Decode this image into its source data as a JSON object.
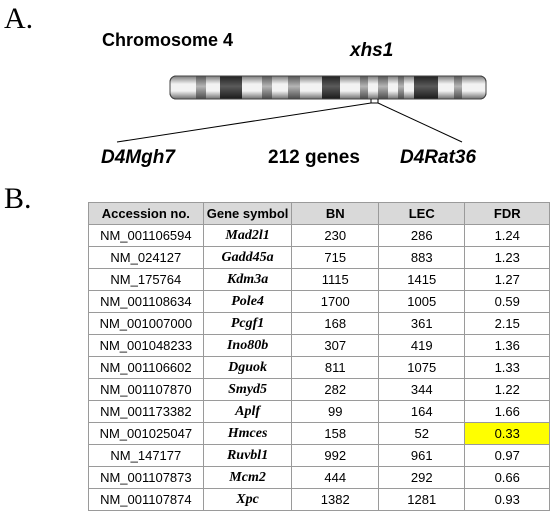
{
  "panel_a": {
    "label": "A.",
    "title": "Chromosome 4",
    "locus": "xhs1",
    "left_marker": "D4Mgh7",
    "gene_count": "212 genes",
    "right_marker": "D4Rat36"
  },
  "panel_b": {
    "label": "B.",
    "columns": [
      "Accession no.",
      "Gene symbol",
      "BN",
      "LEC",
      "FDR"
    ],
    "highlight_color": "#ffff00",
    "rows": [
      {
        "accession": "NM_001106594",
        "gene": "Mad2l1",
        "bn": "230",
        "lec": "286",
        "fdr": "1.24",
        "highlight": false
      },
      {
        "accession": "NM_024127",
        "gene": "Gadd45a",
        "bn": "715",
        "lec": "883",
        "fdr": "1.23",
        "highlight": false
      },
      {
        "accession": "NM_175764",
        "gene": "Kdm3a",
        "bn": "1115",
        "lec": "1415",
        "fdr": "1.27",
        "highlight": false
      },
      {
        "accession": "NM_001108634",
        "gene": "Pole4",
        "bn": "1700",
        "lec": "1005",
        "fdr": "0.59",
        "highlight": false
      },
      {
        "accession": "NM_001007000",
        "gene": "Pcgf1",
        "bn": "168",
        "lec": "361",
        "fdr": "2.15",
        "highlight": false
      },
      {
        "accession": "NM_001048233",
        "gene": "Ino80b",
        "bn": "307",
        "lec": "419",
        "fdr": "1.36",
        "highlight": false
      },
      {
        "accession": "NM_001106602",
        "gene": "Dguok",
        "bn": "811",
        "lec": "1075",
        "fdr": "1.33",
        "highlight": false
      },
      {
        "accession": "NM_001107870",
        "gene": "Smyd5",
        "bn": "282",
        "lec": "344",
        "fdr": "1.22",
        "highlight": false
      },
      {
        "accession": "NM_001173382",
        "gene": "Aplf",
        "bn": "99",
        "lec": "164",
        "fdr": "1.66",
        "highlight": false
      },
      {
        "accession": "NM_001025047",
        "gene": "Hmces",
        "bn": "158",
        "lec": "52",
        "fdr": "0.33",
        "highlight": true
      },
      {
        "accession": "NM_147177",
        "gene": "Ruvbl1",
        "bn": "992",
        "lec": "961",
        "fdr": "0.97",
        "highlight": false
      },
      {
        "accession": "NM_001107873",
        "gene": "Mcm2",
        "bn": "444",
        "lec": "292",
        "fdr": "0.66",
        "highlight": false
      },
      {
        "accession": "NM_001107874",
        "gene": "Xpc",
        "bn": "1382",
        "lec": "1281",
        "fdr": "0.93",
        "highlight": false
      }
    ]
  }
}
